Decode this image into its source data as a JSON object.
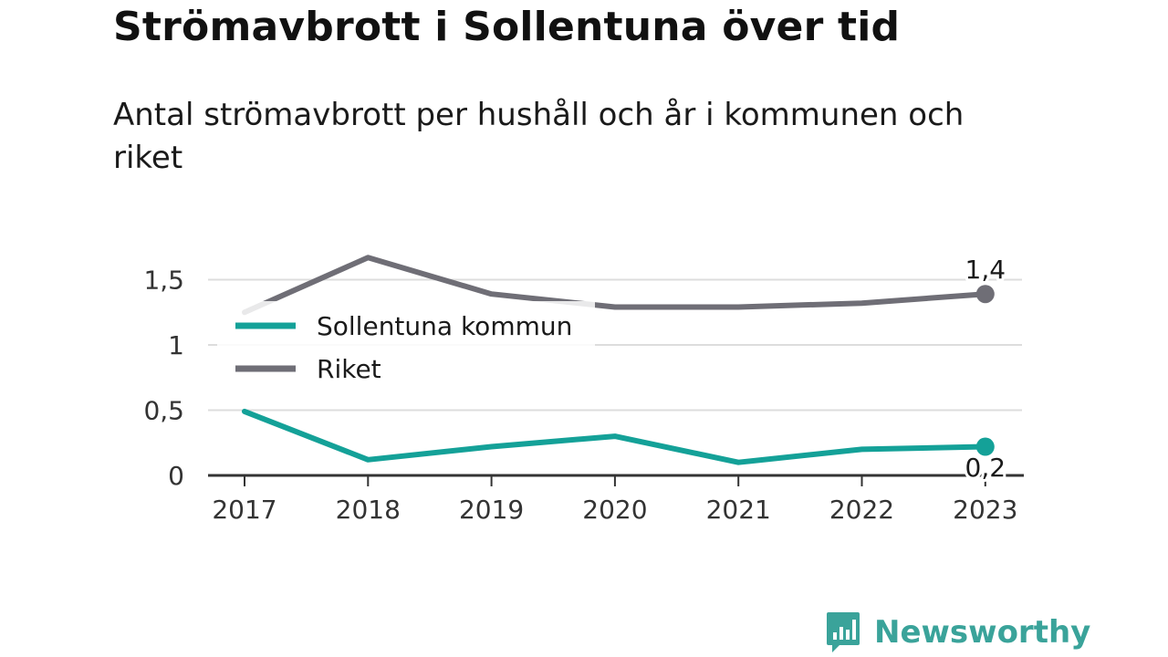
{
  "title": "Strömavbrott i Sollentuna över tid",
  "subtitle": "Antal strömavbrott per hushåll och år i kommunen och riket",
  "brand": {
    "name": "Newsworthy",
    "icon": "bar-chart-speech-bubble-icon",
    "color": "#3aa39a"
  },
  "chart_data": {
    "type": "line",
    "x": [
      "2017",
      "2018",
      "2019",
      "2020",
      "2021",
      "2022",
      "2023"
    ],
    "ylim": [
      0,
      1.7
    ],
    "yticks": [
      {
        "value": 0,
        "label": "0"
      },
      {
        "value": 0.5,
        "label": "0,5"
      },
      {
        "value": 1,
        "label": "1"
      },
      {
        "value": 1.5,
        "label": "1,5"
      }
    ],
    "grid": true,
    "legend": "top-left",
    "series": [
      {
        "name": "Sollentuna kommun",
        "color": "#14a198",
        "values": [
          0.49,
          0.12,
          0.22,
          0.3,
          0.1,
          0.2,
          0.22
        ],
        "end_label": "0,2"
      },
      {
        "name": "Riket",
        "color": "#6f6e76",
        "values": [
          1.25,
          1.67,
          1.39,
          1.29,
          1.29,
          1.32,
          1.39
        ],
        "end_label": "1,4"
      }
    ]
  }
}
